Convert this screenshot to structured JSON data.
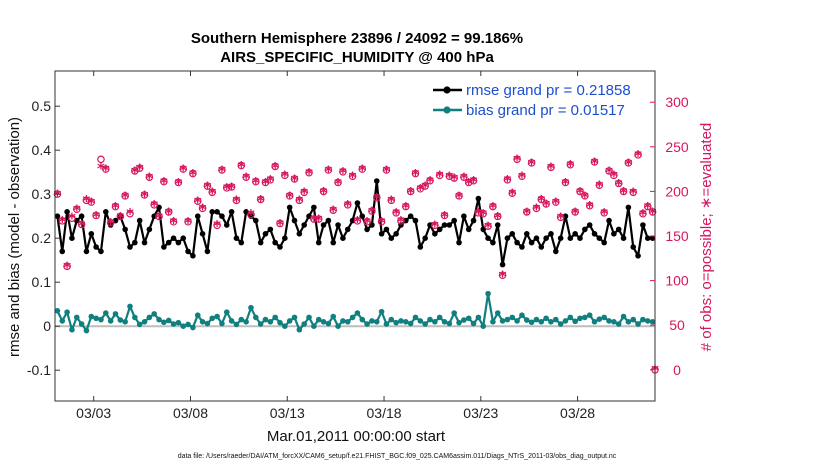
{
  "chart_data": {
    "type": "line",
    "title_line1": "Southern Hemisphere 23896 / 24092 = 99.186%",
    "title_line2": "AIRS_SPECIFIC_HUMIDITY @ 400 hPa",
    "xlabel": "Mar.01,2011 00:00:00 start",
    "ylabel_left": "rmse and bias (model - observation)",
    "ylabel_right": "# of obs: o=possible; ∗=evaluated",
    "x_ticks": [
      "03/03",
      "03/08",
      "03/13",
      "03/18",
      "03/23",
      "03/28"
    ],
    "x_tick_days": [
      2,
      7,
      12,
      17,
      22,
      27
    ],
    "xlim_days": [
      0,
      31
    ],
    "y_left_ticks": [
      "-0.1",
      "0",
      "0.1",
      "0.2",
      "0.3",
      "0.4",
      "0.5"
    ],
    "ylim_left": [
      -0.17,
      0.58
    ],
    "y_right_ticks": [
      "0",
      "50",
      "100",
      "150",
      "200",
      "250",
      "300"
    ],
    "ylim_right": [
      -35,
      335
    ],
    "grid": false,
    "legend_position": "top-right",
    "n_points": 124,
    "series": [
      {
        "name": "rmse grand pr = 0.21858",
        "color": "#000000",
        "axis": "left",
        "values": [
          0.25,
          0.17,
          0.26,
          0.2,
          0.24,
          0.25,
          0.17,
          0.21,
          0.18,
          0.17,
          0.26,
          0.23,
          0.24,
          0.25,
          0.22,
          0.18,
          0.19,
          0.24,
          0.19,
          0.22,
          0.25,
          0.27,
          0.18,
          0.19,
          0.2,
          0.19,
          0.2,
          0.17,
          0.16,
          0.25,
          0.21,
          0.17,
          0.26,
          0.26,
          0.25,
          0.23,
          0.26,
          0.2,
          0.19,
          0.26,
          0.25,
          0.24,
          0.19,
          0.21,
          0.22,
          0.19,
          0.18,
          0.2,
          0.27,
          0.24,
          0.21,
          0.23,
          0.25,
          0.27,
          0.19,
          0.23,
          0.24,
          0.19,
          0.23,
          0.2,
          0.22,
          0.24,
          0.28,
          0.25,
          0.22,
          0.23,
          0.33,
          0.21,
          0.22,
          0.2,
          0.21,
          0.23,
          0.24,
          0.25,
          0.24,
          0.18,
          0.2,
          0.23,
          0.21,
          0.22,
          0.23,
          0.23,
          0.24,
          0.19,
          0.25,
          0.22,
          0.24,
          0.29,
          0.22,
          0.2,
          0.19,
          0.23,
          0.14,
          0.2,
          0.21,
          0.19,
          0.18,
          0.21,
          0.19,
          0.2,
          0.18,
          0.2,
          0.21,
          0.17,
          0.2,
          0.25,
          0.2,
          0.21,
          0.2,
          0.22,
          0.23,
          0.21,
          0.2,
          0.19,
          0.24,
          0.21,
          0.22,
          0.2,
          0.27,
          0.18,
          0.16,
          0.23,
          0.2,
          0.2
        ]
      },
      {
        "name": "bias grand pr = 0.01517",
        "color": "#0f7f7f",
        "axis": "left",
        "values": [
          0.035,
          0.012,
          0.032,
          -0.008,
          0.02,
          0.005,
          -0.01,
          0.022,
          0.018,
          0.015,
          0.03,
          0.012,
          0.028,
          0.014,
          0.01,
          0.045,
          0.02,
          0.004,
          0.01,
          0.02,
          0.028,
          0.015,
          0.009,
          0.013,
          0.005,
          0.008,
          0.0,
          0.004,
          -0.003,
          0.025,
          0.01,
          0.006,
          0.018,
          0.022,
          0.006,
          0.032,
          0.012,
          0.004,
          0.015,
          0.01,
          0.042,
          0.02,
          0.005,
          0.015,
          0.01,
          0.02,
          0.008,
          0.0,
          0.012,
          0.02,
          -0.008,
          0.005,
          0.02,
          0.0,
          0.015,
          0.01,
          0.006,
          0.022,
          0.0,
          0.012,
          0.01,
          0.02,
          0.03,
          0.015,
          0.005,
          0.012,
          0.01,
          0.033,
          0.005,
          0.015,
          0.008,
          0.012,
          0.01,
          0.006,
          0.02,
          0.012,
          0.005,
          0.015,
          0.01,
          0.02,
          0.01,
          0.006,
          0.03,
          0.008,
          0.014,
          0.018,
          0.006,
          0.02,
          0.0,
          0.074,
          0.01,
          0.03,
          0.012,
          0.015,
          0.02,
          0.012,
          0.025,
          0.014,
          0.009,
          0.015,
          0.01,
          0.018,
          0.01,
          0.015,
          0.005,
          0.012,
          0.02,
          0.011,
          0.018,
          0.02,
          0.025,
          0.01,
          0.016,
          0.02,
          0.012,
          0.01,
          0.005,
          0.022,
          0.01,
          0.015,
          0.005,
          0.015,
          0.012,
          0.01
        ]
      },
      {
        "name": "possible observations",
        "color": "#d6175f",
        "axis": "right",
        "marker": "o",
        "values": [
          197,
          167,
          116,
          170,
          180,
          163,
          190,
          188,
          173,
          236,
          225,
          165,
          183,
          172,
          195,
          175,
          223,
          226,
          196,
          216,
          185,
          172,
          211,
          177,
          166,
          210,
          225,
          166,
          220,
          189,
          181,
          206,
          199,
          162,
          224,
          204,
          205,
          190,
          229,
          216,
          174,
          211,
          191,
          210,
          213,
          228,
          164,
          218,
          195,
          214,
          190,
          199,
          221,
          169,
          169,
          200,
          224,
          179,
          210,
          222,
          185,
          217,
          167,
          225,
          166,
          178,
          193,
          166,
          224,
          190,
          176,
          167,
          183,
          200,
          220,
          203,
          206,
          212,
          162,
          218,
          173,
          217,
          215,
          195,
          216,
          210,
          212,
          176,
          175,
          161,
          183,
          172,
          106,
          213,
          198,
          236,
          217,
          177,
          232,
          181,
          191,
          186,
          227,
          188,
          171,
          210,
          230,
          177,
          200,
          195,
          184,
          233,
          207,
          176,
          223,
          218,
          209,
          200,
          232,
          199,
          241,
          175,
          183,
          177
        ]
      },
      {
        "name": "evaluated observations",
        "color": "#d6175f",
        "axis": "right",
        "marker": "*",
        "values": [
          196,
          166,
          115,
          170,
          179,
          162,
          190,
          187,
          172,
          226,
          224,
          164,
          182,
          171,
          194,
          175,
          222,
          225,
          195,
          215,
          184,
          171,
          210,
          176,
          165,
          209,
          224,
          165,
          219,
          188,
          180,
          205,
          198,
          162,
          223,
          203,
          204,
          189,
          228,
          215,
          174,
          210,
          190,
          209,
          212,
          227,
          163,
          217,
          194,
          213,
          189,
          198,
          220,
          168,
          168,
          199,
          223,
          178,
          209,
          221,
          184,
          216,
          166,
          224,
          165,
          177,
          192,
          165,
          223,
          189,
          175,
          166,
          182,
          199,
          219,
          202,
          205,
          211,
          161,
          217,
          172,
          216,
          214,
          194,
          215,
          209,
          211,
          175,
          174,
          160,
          182,
          171,
          105,
          212,
          197,
          235,
          216,
          176,
          231,
          180,
          190,
          185,
          226,
          187,
          170,
          209,
          229,
          176,
          199,
          194,
          183,
          232,
          206,
          175,
          222,
          217,
          208,
          199,
          231,
          198,
          240,
          174,
          182,
          176
        ]
      }
    ],
    "extra_point": {
      "x_days": 31.0,
      "y_right": 0
    }
  },
  "footnote": "data file: /Users/raeder/DAI/ATM_forcXX/CAM6_setup/f.e21.FHIST_BGC.f09_025.CAM6assim.011/Diags_NTrS_2011-03/obs_diag_output.nc"
}
